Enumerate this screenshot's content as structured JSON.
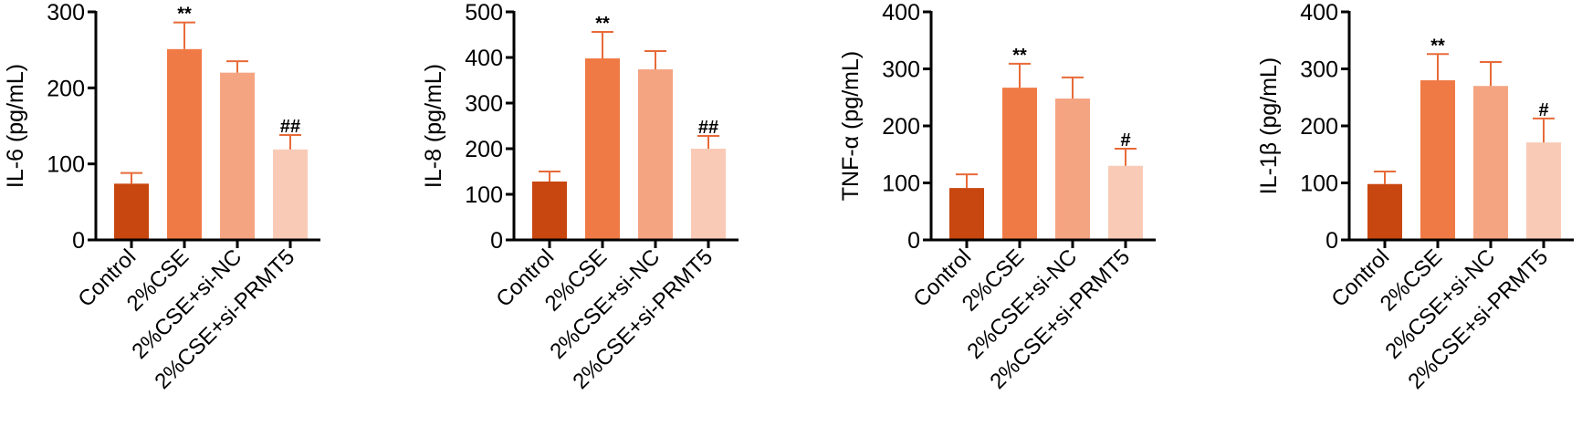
{
  "figure": {
    "bar_colors": [
      "#C8460F",
      "#F07A45",
      "#F5A482",
      "#F9CBB6"
    ],
    "error_bar_color": "#E86A38",
    "axis_color": "#000000"
  },
  "chart_data": [
    {
      "type": "bar",
      "title": "",
      "xlabel": "",
      "ylabel": "IL-6 (pg/mL)",
      "categories": [
        "Control",
        "2%CSE",
        "2%CSE+si-NC",
        "2%CSE+si-PRMT5"
      ],
      "values": [
        74,
        251,
        220,
        119
      ],
      "error_upper": [
        88,
        286,
        235,
        138
      ],
      "annotations": [
        "",
        "**",
        "",
        "##"
      ],
      "ylim": [
        0,
        300
      ],
      "yticks": [
        0,
        100,
        200,
        300
      ],
      "grid": false
    },
    {
      "type": "bar",
      "title": "",
      "xlabel": "",
      "ylabel": "IL-8 (pg/mL)",
      "categories": [
        "Control",
        "2%CSE",
        "2%CSE+si-NC",
        "2%CSE+si-PRMT5"
      ],
      "values": [
        128,
        398,
        374,
        200
      ],
      "error_upper": [
        150,
        456,
        414,
        228
      ],
      "annotations": [
        "",
        "**",
        "",
        "##"
      ],
      "ylim": [
        0,
        500
      ],
      "yticks": [
        0,
        100,
        200,
        300,
        400,
        500
      ],
      "grid": false
    },
    {
      "type": "bar",
      "title": "",
      "xlabel": "",
      "ylabel": "TNF-α (pg/mL)",
      "categories": [
        "Control",
        "2%CSE",
        "2%CSE+si-NC",
        "2%CSE+si-PRMT5"
      ],
      "values": [
        91,
        267,
        248,
        130
      ],
      "error_upper": [
        115,
        309,
        285,
        160
      ],
      "annotations": [
        "",
        "**",
        "",
        "#"
      ],
      "ylim": [
        0,
        400
      ],
      "yticks": [
        0,
        100,
        200,
        300,
        400
      ],
      "grid": false
    },
    {
      "type": "bar",
      "title": "",
      "xlabel": "",
      "ylabel": "IL-1β (pg/mL)",
      "categories": [
        "Control",
        "2%CSE",
        "2%CSE+si-NC",
        "2%CSE+si-PRMT5"
      ],
      "values": [
        98,
        280,
        270,
        171
      ],
      "error_upper": [
        120,
        326,
        312,
        213
      ],
      "annotations": [
        "",
        "**",
        "",
        "#"
      ],
      "ylim": [
        0,
        400
      ],
      "yticks": [
        0,
        100,
        200,
        300,
        400
      ],
      "grid": false
    }
  ]
}
